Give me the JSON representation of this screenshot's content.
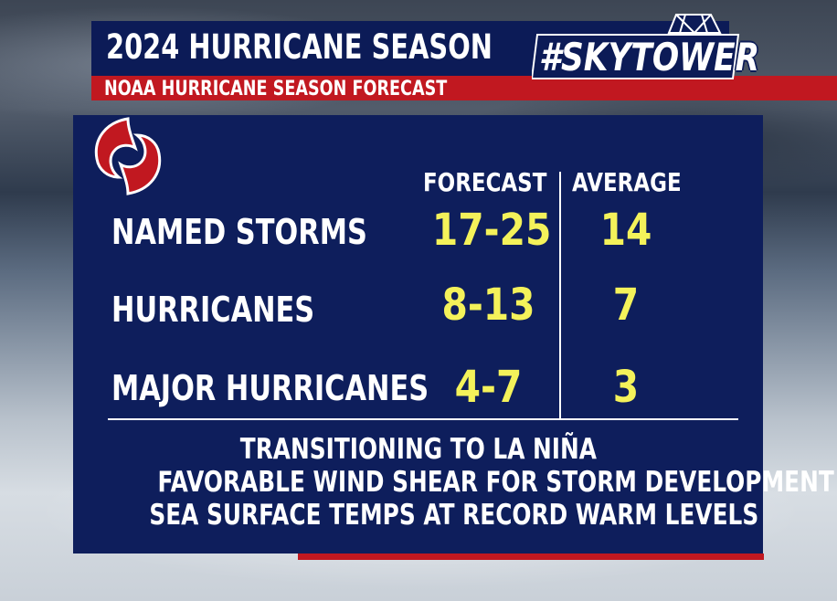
{
  "header": {
    "title": "2024 HURRICANE SEASON",
    "subtitle": "NOAA HURRICANE SEASON FORECAST",
    "logo_text": "#SKYTOWER"
  },
  "table": {
    "col_forecast": "FORECAST",
    "col_average": "AVERAGE",
    "rows": [
      {
        "label": "NAMED STORMS",
        "forecast": "17-25",
        "average": "14"
      },
      {
        "label": "HURRICANES",
        "forecast": "8-13",
        "average": "7"
      },
      {
        "label": "MAJOR HURRICANES",
        "forecast": "4-7",
        "average": "3"
      }
    ]
  },
  "notes": [
    "TRANSITIONING TO LA NIÑA",
    "FAVORABLE WIND SHEAR FOR STORM DEVELOPMENT",
    "SEA SURFACE TEMPS AT RECORD WARM LEVELS"
  ],
  "colors": {
    "navy": "#0e1e5c",
    "red": "#c11820",
    "value_yellow": "#f4f25a"
  }
}
